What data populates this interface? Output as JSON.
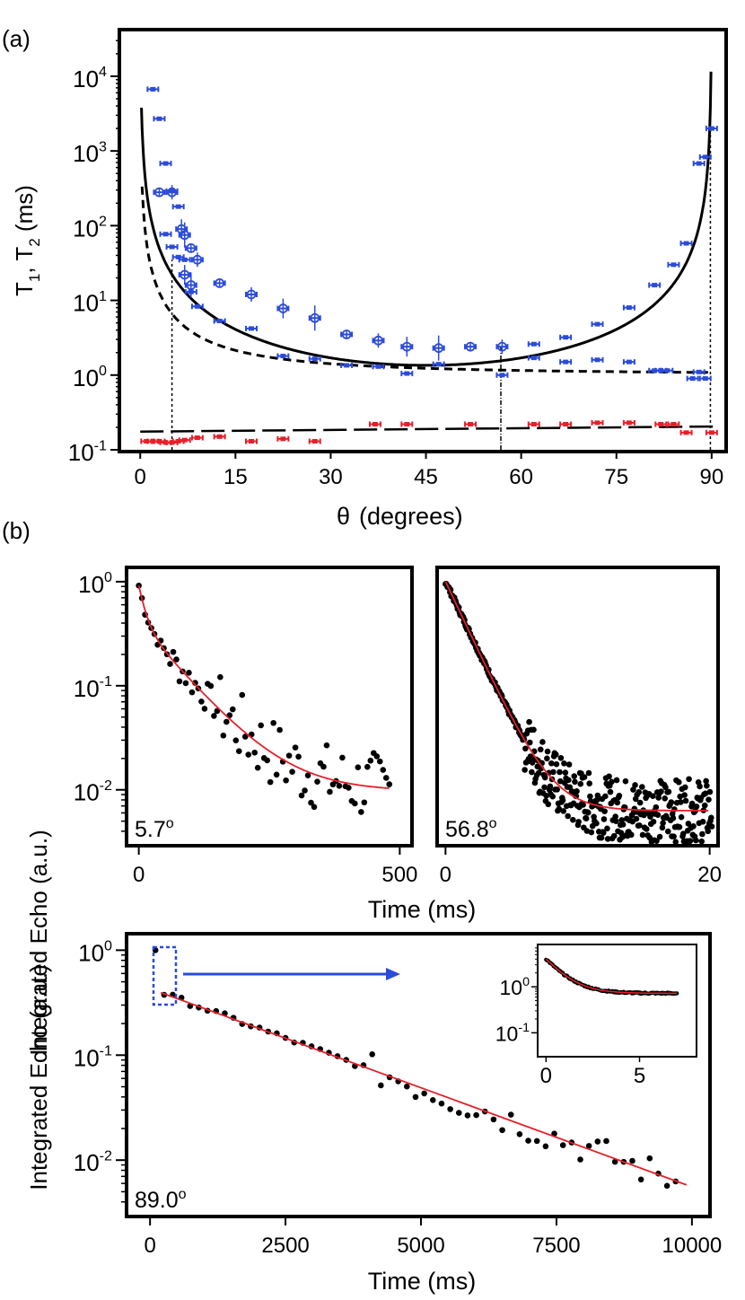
{
  "chart_data": [
    {
      "panel_label": "(a)",
      "type": "scatter",
      "xlabel_symbol": "θ",
      "xlabel": "(degrees)",
      "ylabel": "T",
      "ylabel_sub1": "1",
      "ylabel_mid": ", T",
      "ylabel_sub2": "2",
      "ylabel_unit": " (ms)",
      "xlim": [
        -3,
        92
      ],
      "ylim_log": [
        -1,
        4.6
      ],
      "x_ticks": [
        0,
        15,
        30,
        45,
        60,
        75,
        90
      ],
      "y_ticks": [
        {
          "base": "10",
          "exp": "4",
          "value": 10000
        },
        {
          "base": "10",
          "exp": "3",
          "value": 1000
        },
        {
          "base": "10",
          "exp": "2",
          "value": 100
        },
        {
          "base": "10",
          "exp": "1",
          "value": 10
        },
        {
          "base": "10",
          "exp": "0",
          "value": 1
        },
        {
          "base": "10",
          "exp": "-1",
          "value": 0.1
        }
      ],
      "series": [
        {
          "name": "T2 blue (filled squares)",
          "color": "#2b4bd9",
          "points": [
            [
              2,
              6700
            ],
            [
              3,
              2700
            ],
            [
              4,
              680
            ],
            [
              5,
              290
            ],
            [
              6,
              180
            ],
            [
              4,
              77
            ],
            [
              5,
              52
            ],
            [
              6,
              38
            ],
            [
              7,
              35
            ],
            [
              8,
              13
            ],
            [
              9,
              8.3
            ],
            [
              12.5,
              5.3
            ],
            [
              17.5,
              4.2
            ],
            [
              22.5,
              1.8
            ],
            [
              27.5,
              1.65
            ],
            [
              32.5,
              1.35
            ],
            [
              37.5,
              1.3
            ],
            [
              42,
              1.05
            ],
            [
              47,
              1.4
            ],
            [
              57,
              1.0
            ],
            [
              62,
              1.7
            ],
            [
              67,
              1.5
            ],
            [
              72,
              1.6
            ],
            [
              77,
              1.5
            ],
            [
              81,
              1.15
            ],
            [
              82,
              1.15
            ],
            [
              83,
              1.15
            ],
            [
              87,
              0.9
            ],
            [
              88,
              1.1
            ],
            [
              89,
              0.9
            ],
            [
              88,
              680
            ],
            [
              89,
              830
            ],
            [
              90,
              2000
            ],
            [
              86,
              58
            ],
            [
              84,
              30
            ],
            [
              81,
              16
            ],
            [
              77,
              8
            ],
            [
              72,
              4.8
            ],
            [
              67,
              3.2
            ],
            [
              62,
              2.6
            ]
          ]
        },
        {
          "name": "T2 blue (open circles)",
          "color": "#2b4bd9",
          "points": [
            [
              3,
              280
            ],
            [
              5,
              280
            ],
            [
              6.5,
              90
            ],
            [
              7,
              75
            ],
            [
              8,
              50
            ],
            [
              9,
              35
            ],
            [
              7,
              22
            ],
            [
              8,
              16
            ],
            [
              12.5,
              17
            ],
            [
              17.5,
              12
            ],
            [
              22.5,
              7.8
            ],
            [
              27.5,
              5.8
            ],
            [
              32.5,
              3.5
            ],
            [
              37.5,
              2.9
            ],
            [
              42,
              2.4
            ],
            [
              47,
              2.3
            ],
            [
              52,
              2.4
            ],
            [
              57,
              2.4
            ]
          ]
        },
        {
          "name": "T1 red",
          "color": "#e81f2a",
          "points": [
            [
              1,
              0.13
            ],
            [
              2,
              0.13
            ],
            [
              3,
              0.13
            ],
            [
              4,
              0.125
            ],
            [
              5,
              0.125
            ],
            [
              6,
              0.13
            ],
            [
              7,
              0.135
            ],
            [
              9,
              0.145
            ],
            [
              12.5,
              0.15
            ],
            [
              17.5,
              0.13
            ],
            [
              22.5,
              0.14
            ],
            [
              27.5,
              0.13
            ],
            [
              37,
              0.22
            ],
            [
              42,
              0.22
            ],
            [
              52,
              0.22
            ],
            [
              62,
              0.22
            ],
            [
              67,
              0.22
            ],
            [
              72,
              0.23
            ],
            [
              77,
              0.23
            ],
            [
              82,
              0.22
            ],
            [
              84,
              0.22
            ],
            [
              86,
              0.17
            ],
            [
              90,
              0.17
            ]
          ]
        }
      ],
      "vlines_deg": [
        5,
        56.8,
        89.8
      ]
    },
    {
      "panel_label": "(b)",
      "type": "scatter",
      "ylabel": "Integrated Echo (a.u.)",
      "xlabel": "Time (ms)",
      "subplots": [
        {
          "angle_label": "5.7",
          "angle_sup": "o",
          "x_ticks": [
            "0",
            "500"
          ],
          "xlim": [
            -20,
            520
          ],
          "T": 45,
          "floor": 0.0097
        },
        {
          "angle_label": "56.8",
          "angle_sup": "o",
          "x_ticks": [
            "0",
            "20"
          ],
          "xlim": [
            -0.5,
            20.5
          ],
          "T": 1.6,
          "floor": 0.0063
        },
        {
          "angle_label": "89.0",
          "angle_sup": "o",
          "x_ticks": [
            "0",
            "2500",
            "5000",
            "7500",
            "10000"
          ],
          "xlim": [
            -400,
            10300
          ],
          "T": 2300
        }
      ],
      "y_ticks": [
        {
          "base": "10",
          "exp": "0"
        },
        {
          "base": "10",
          "exp": "-1"
        },
        {
          "base": "10",
          "exp": "-2"
        }
      ],
      "inset": {
        "x_ticks": [
          "0",
          "5"
        ],
        "y_ticks": [
          {
            "base": "10",
            "exp": "0"
          },
          {
            "base": "10",
            "exp": "-1"
          }
        ]
      }
    }
  ]
}
